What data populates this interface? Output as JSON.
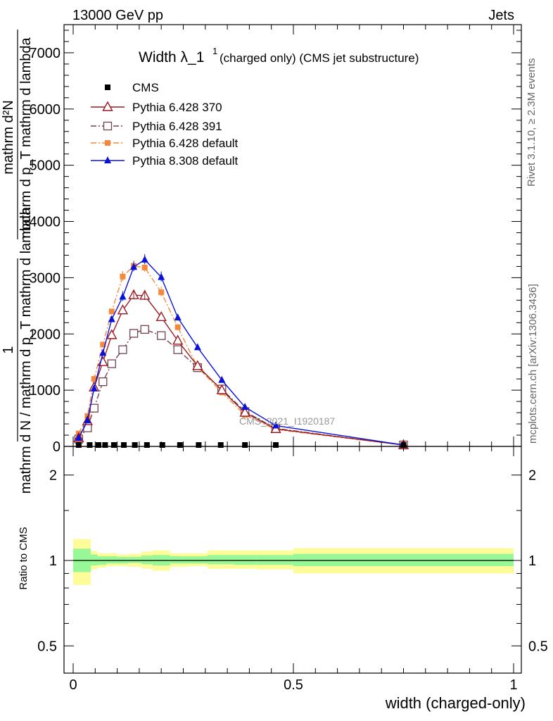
{
  "header": {
    "left": "13000 GeV pp",
    "right": "Jets"
  },
  "side": {
    "rivet": "Rivet 3.1.10, ≥ 2.3M events",
    "mcplots": "mcplots.cern.ch [arXiv:1306.3436]"
  },
  "title_main": "Width λ_1",
  "title_sup": "1",
  "title_sub": "(charged only) (CMS jet substructure)",
  "watermark": "CMS_2021_I1920187",
  "ylabel_num": "1",
  "ylabel_den": "mathrm d N / mathrm d p_T mathrm d lambda",
  "ylabel_num2": "mathrm d²N",
  "ylabel_den2": "mathrm d p_T mathrm d lambda",
  "ratio_ylabel": "Ratio to CMS",
  "xlabel": "width (charged-only)",
  "colors": {
    "cms": "#000000",
    "p370": "#9a1a22",
    "p391": "#74434f",
    "p6def": "#f5893b",
    "p8def": "#0b12d8",
    "band_inner": "#98f797",
    "band_outer": "#fefc99"
  },
  "chart_data": [
    {
      "type": "line",
      "panel": "main",
      "xlim": [
        0,
        1
      ],
      "ylim": [
        0,
        7500
      ],
      "y_ticks": [
        0,
        1000,
        2000,
        3000,
        4000,
        5000,
        6000,
        7000
      ],
      "y_tick_labels": [
        "0",
        "1000",
        "2000",
        "3000",
        "4000",
        "5000",
        "6000",
        "7000"
      ],
      "legend_position": "top-left",
      "series": [
        {
          "name": "CMS",
          "color": "#000000",
          "marker": "square",
          "x": [
            0.0125,
            0.0375,
            0.0575,
            0.0725,
            0.0925,
            0.115,
            0.14,
            0.1675,
            0.2025,
            0.2425,
            0.285,
            0.335,
            0.39,
            0.46,
            0.75
          ],
          "y": [
            0,
            0,
            0,
            0,
            0,
            0,
            0,
            0,
            0,
            0,
            0,
            0,
            0,
            0,
            0
          ]
        },
        {
          "name": "Pythia 6.428 370",
          "color": "#9a1a22",
          "marker": "triangle-open",
          "dash": "",
          "x": [
            0.0125,
            0.0325,
            0.0475,
            0.0675,
            0.0875,
            0.1125,
            0.1375,
            0.1625,
            0.2,
            0.2375,
            0.2825,
            0.3375,
            0.39,
            0.46,
            0.75
          ],
          "y": [
            150,
            450,
            1050,
            1500,
            1980,
            2420,
            2690,
            2680,
            2300,
            1880,
            1430,
            1000,
            600,
            310,
            25
          ]
        },
        {
          "name": "Pythia 6.428 391",
          "color": "#74434f",
          "marker": "square-open",
          "dash": "8,3,2,3",
          "x": [
            0.0125,
            0.0325,
            0.0475,
            0.0675,
            0.0875,
            0.1125,
            0.1375,
            0.1625,
            0.2,
            0.2375,
            0.2825,
            0.3375,
            0.39,
            0.46,
            0.75
          ],
          "y": [
            130,
            330,
            680,
            1150,
            1470,
            1720,
            2010,
            2080,
            1970,
            1720,
            1400,
            1020,
            620,
            320,
            25
          ]
        },
        {
          "name": "Pythia 6.428 default",
          "color": "#f5893b",
          "marker": "square-filled",
          "dash": "8,3,2,3",
          "x": [
            0.0125,
            0.0325,
            0.0475,
            0.0675,
            0.0875,
            0.1125,
            0.1375,
            0.1625,
            0.2,
            0.2375,
            0.2825,
            0.3375,
            0.39,
            0.46,
            0.75
          ],
          "y": [
            230,
            540,
            1200,
            1810,
            2400,
            3020,
            3210,
            3180,
            2740,
            2120,
            1410,
            960,
            560,
            300,
            25
          ]
        },
        {
          "name": "Pythia 8.308 default",
          "color": "#0b12d8",
          "marker": "triangle-filled",
          "dash": "",
          "x": [
            0.0125,
            0.0325,
            0.0475,
            0.0675,
            0.0875,
            0.1125,
            0.1375,
            0.1625,
            0.2,
            0.2375,
            0.2825,
            0.3375,
            0.39,
            0.46,
            0.75
          ],
          "y": [
            150,
            460,
            1030,
            1660,
            2260,
            2660,
            3190,
            3320,
            3010,
            2290,
            1760,
            1180,
            700,
            370,
            25
          ]
        }
      ]
    },
    {
      "type": "area",
      "panel": "ratio",
      "xlim": [
        0,
        1
      ],
      "ylim": [
        0.4,
        2.4
      ],
      "y_scale": "log",
      "y_ticks": [
        0.5,
        1,
        2
      ],
      "y_tick_labels": [
        "0.5",
        "1",
        "2"
      ],
      "x_ticks": [
        0,
        0.5,
        1
      ],
      "x_tick_labels": [
        "0",
        "0.5",
        "1"
      ],
      "bin_edges": [
        0,
        0.04,
        0.055,
        0.075,
        0.1,
        0.125,
        0.155,
        0.18,
        0.22,
        0.265,
        0.305,
        0.365,
        0.415,
        0.5,
        1.0
      ],
      "inner_band": {
        "lo": [
          0.91,
          0.96,
          0.965,
          0.975,
          0.975,
          0.98,
          0.97,
          0.96,
          0.975,
          0.975,
          0.97,
          0.965,
          0.965,
          0.955
        ],
        "hi": [
          1.1,
          1.05,
          1.035,
          1.035,
          1.03,
          1.03,
          1.04,
          1.045,
          1.035,
          1.035,
          1.045,
          1.045,
          1.045,
          1.055
        ]
      },
      "outer_band": {
        "lo": [
          0.82,
          0.93,
          0.945,
          0.955,
          0.955,
          0.95,
          0.935,
          0.92,
          0.95,
          0.955,
          0.935,
          0.935,
          0.93,
          0.9
        ],
        "hi": [
          1.19,
          1.08,
          1.06,
          1.06,
          1.05,
          1.055,
          1.075,
          1.085,
          1.06,
          1.06,
          1.085,
          1.085,
          1.085,
          1.105
        ]
      }
    }
  ]
}
